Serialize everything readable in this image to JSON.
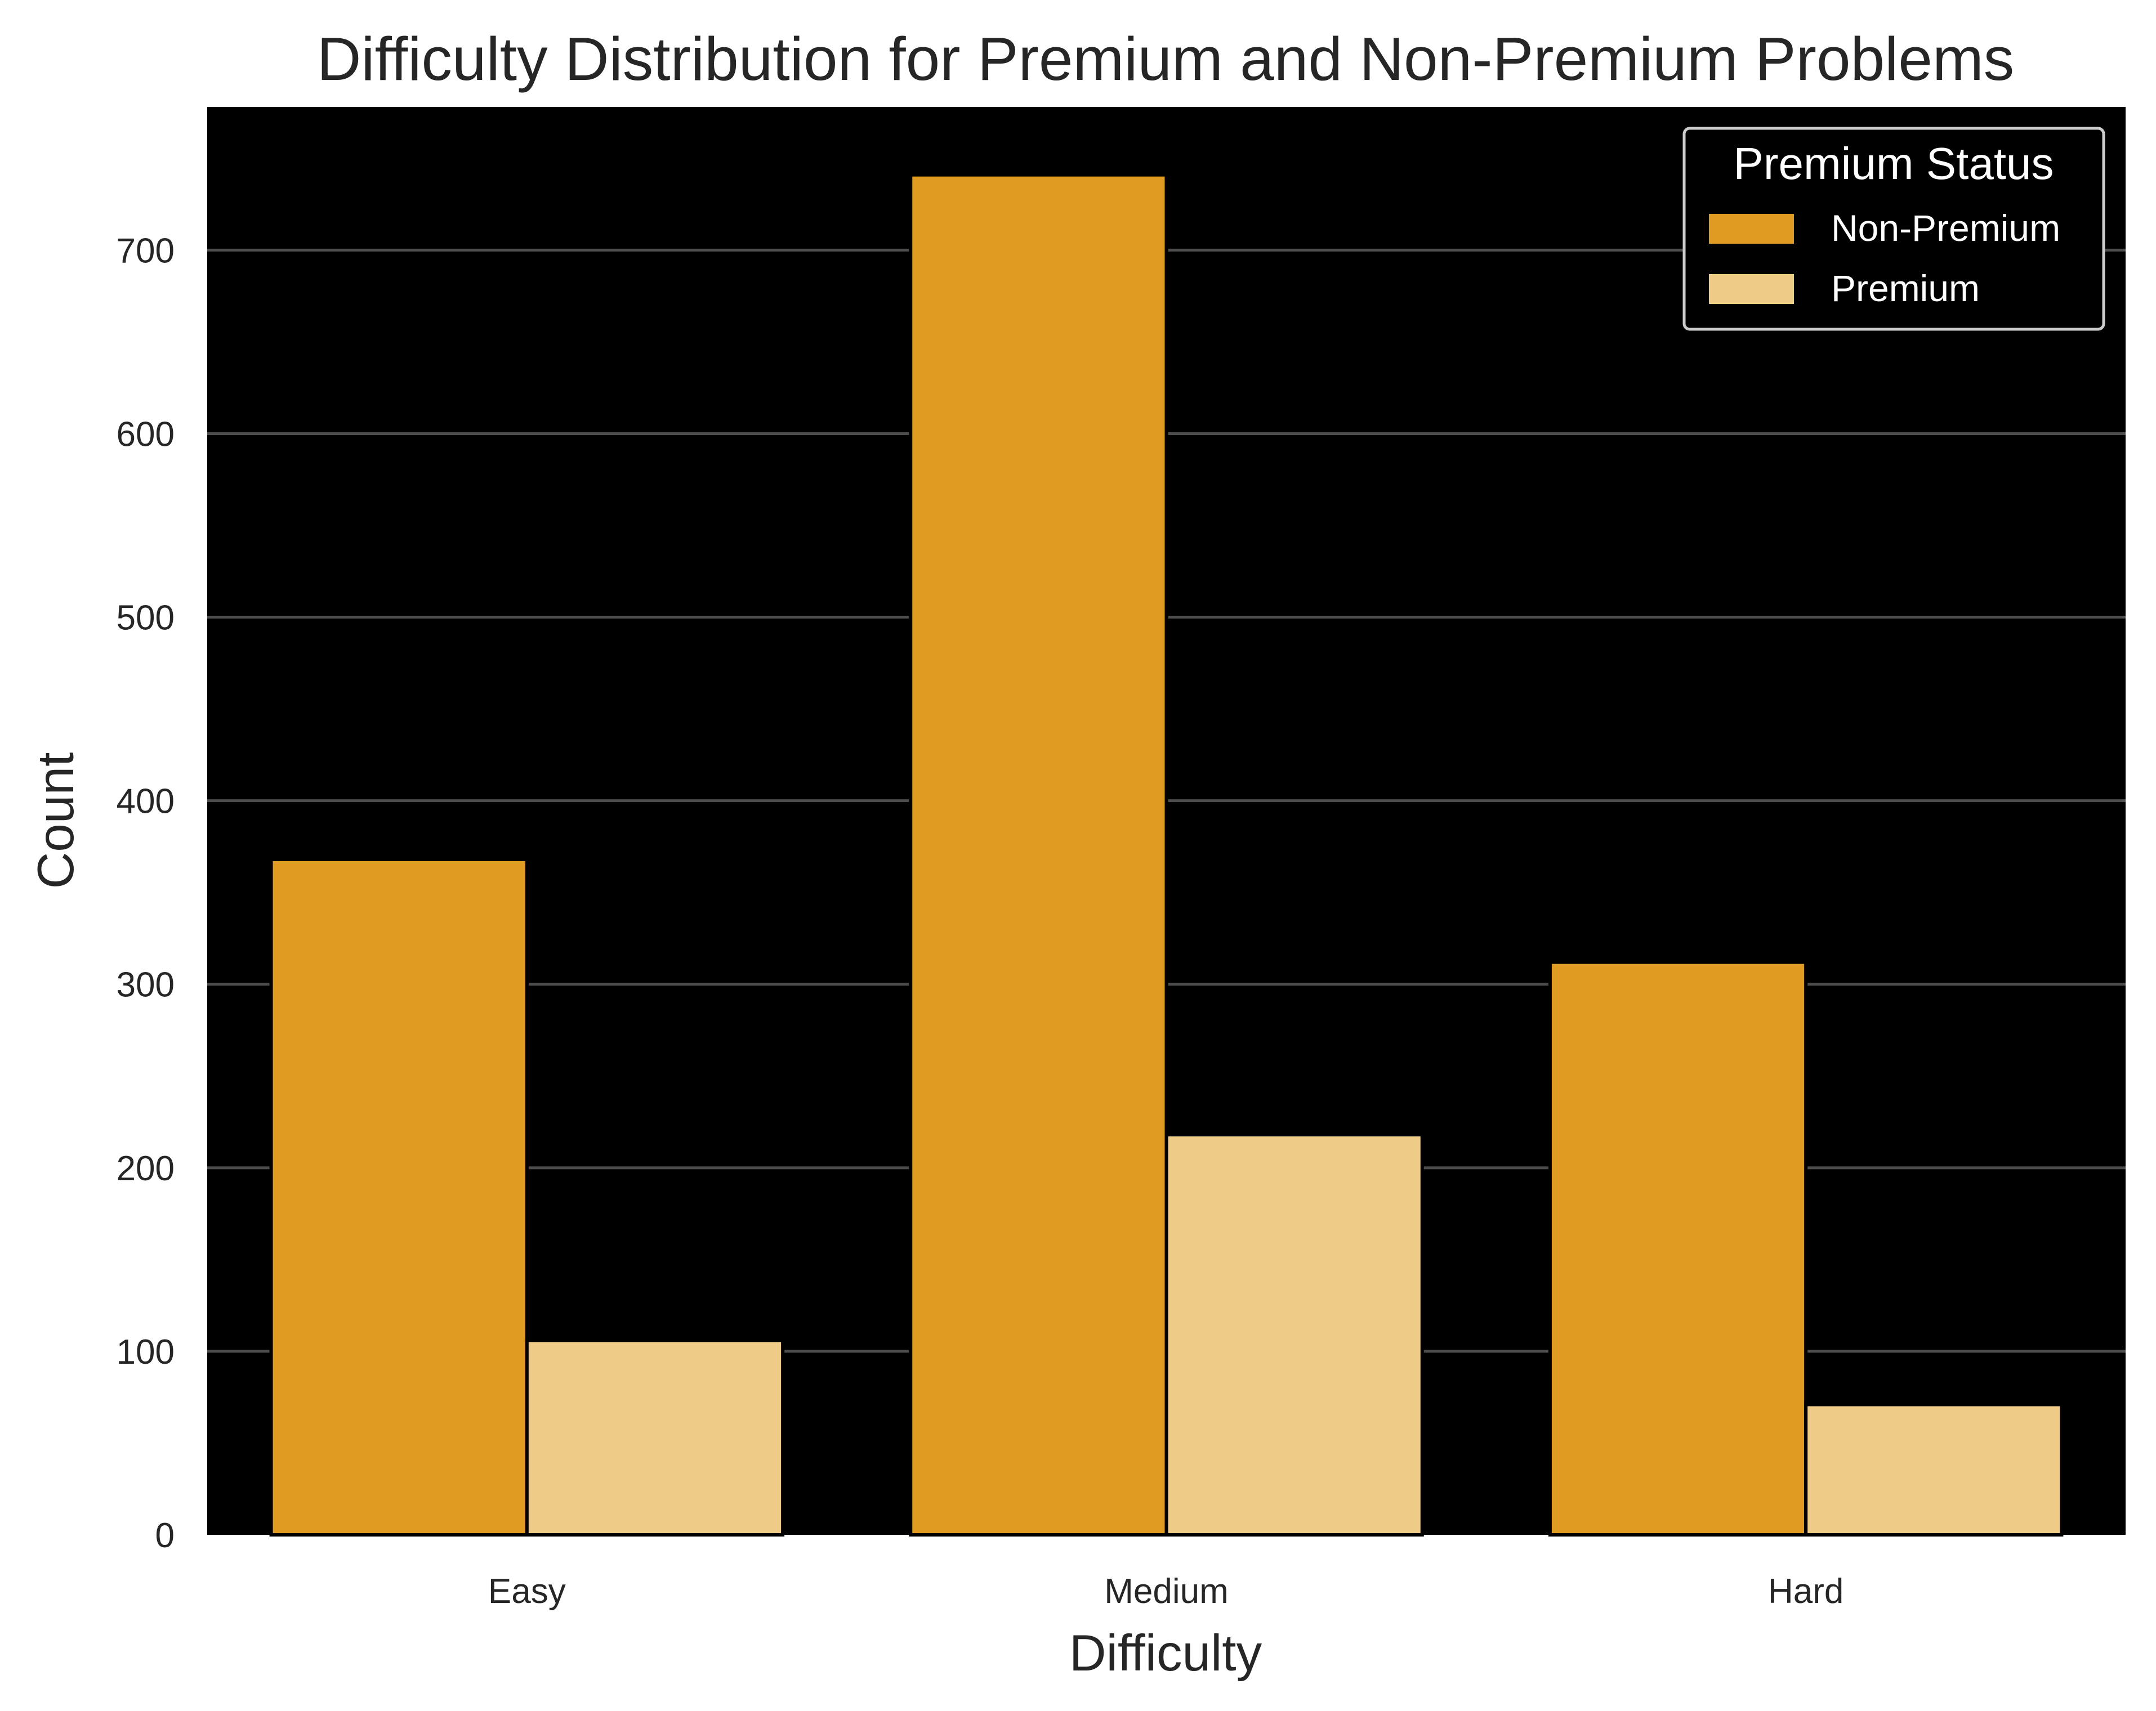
{
  "chart_data": {
    "type": "bar",
    "title": "Difficulty Distribution for Premium and Non-Premium Problems",
    "xlabel": "Difficulty",
    "ylabel": "Count",
    "categories": [
      "Easy",
      "Medium",
      "Hard"
    ],
    "series": [
      {
        "name": "Non-Premium",
        "values": [
          368,
          741,
          312
        ],
        "color": "#e09b22"
      },
      {
        "name": "Premium",
        "values": [
          106,
          218,
          71
        ],
        "color": "#eecb86"
      }
    ],
    "ylim": [
      0,
      778
    ],
    "yticks": [
      0,
      100,
      200,
      300,
      400,
      500,
      600,
      700
    ],
    "grid": true,
    "grid_axis": "y",
    "plot_background": "#000000",
    "grid_color": "#4d4d4d",
    "legend": {
      "title": "Premium Status",
      "position": "top-right"
    }
  }
}
